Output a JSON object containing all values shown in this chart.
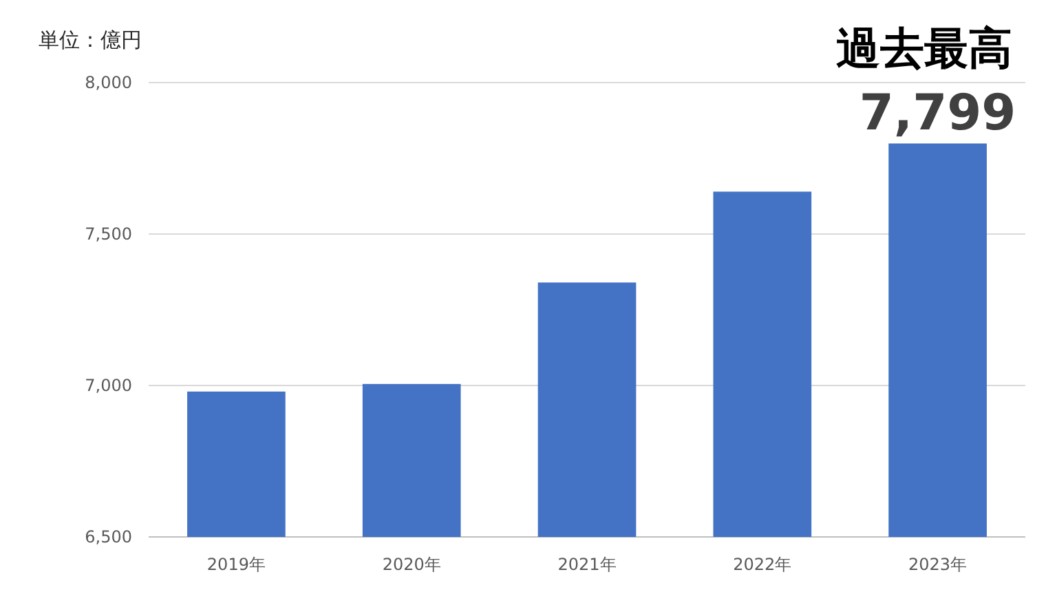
{
  "chart_data": {
    "type": "bar",
    "ylabel": "単位：億円",
    "annotations": [
      "過去最高"
    ],
    "categories": [
      "2019年",
      "2020年",
      "2021年",
      "2022年",
      "2023年"
    ],
    "values": [
      6980,
      7005,
      7340,
      7640,
      7799
    ],
    "value_labels": [
      null,
      null,
      null,
      null,
      "7,799"
    ],
    "color": "#4472c4",
    "ylim": [
      6500,
      8000
    ],
    "yticks": [
      {
        "value": 6500,
        "label": "6,500"
      },
      {
        "value": 7000,
        "label": "7,000"
      },
      {
        "value": 7500,
        "label": "7,500"
      },
      {
        "value": 8000,
        "label": "8,000"
      }
    ],
    "grid": "y"
  }
}
